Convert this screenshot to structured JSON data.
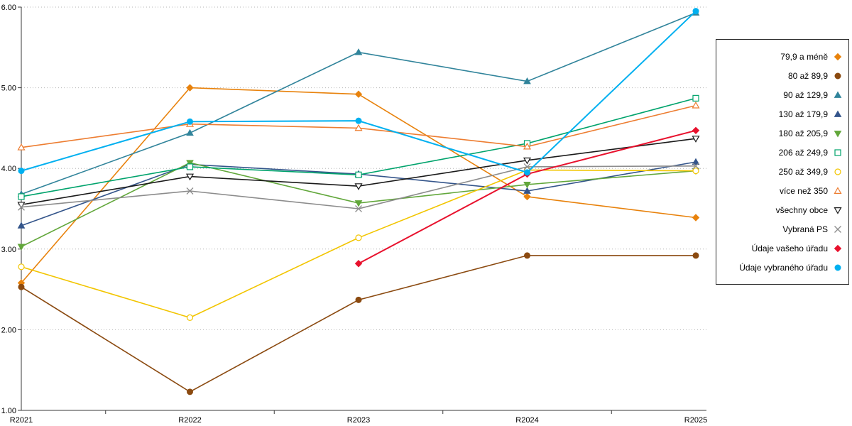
{
  "chart_data": {
    "type": "line",
    "title": "",
    "xlabel": "",
    "ylabel": "",
    "categories": [
      "R2021",
      "R2022",
      "R2023",
      "R2024",
      "R2025"
    ],
    "ylim": [
      1,
      6
    ],
    "yticks": [
      "1.00",
      "2.00",
      "3.00",
      "4.00",
      "5.00",
      "6.00"
    ],
    "grid": true,
    "grid_style": "dotted",
    "legend_position": "right",
    "colors": {
      "axis": "#3a3a3a",
      "gridline": "#b5b5b5",
      "background": "#ffffff",
      "legend_border": "#2b2b2b"
    },
    "series": [
      {
        "name": "79,9 a méně",
        "color": "#e8820c",
        "marker": "diamond",
        "fill": "filled",
        "width": 1.6,
        "values": [
          2.58,
          5.0,
          4.92,
          3.65,
          3.39
        ]
      },
      {
        "name": "80 až 89,9",
        "color": "#8b4a10",
        "marker": "circle",
        "fill": "filled",
        "width": 1.6,
        "values": [
          2.53,
          1.23,
          2.37,
          2.92,
          2.92
        ]
      },
      {
        "name": "90 až 129,9",
        "color": "#31849b",
        "marker": "triangle-up",
        "fill": "filled",
        "width": 1.6,
        "values": [
          3.68,
          4.44,
          5.44,
          5.08,
          5.93
        ]
      },
      {
        "name": "130 až 179,9",
        "color": "#34558b",
        "marker": "triangle-up",
        "fill": "filled",
        "width": 1.6,
        "values": [
          3.29,
          4.05,
          3.93,
          3.72,
          4.08
        ]
      },
      {
        "name": "180 až 205,9",
        "color": "#62a73b",
        "marker": "triangle-down",
        "fill": "filled",
        "width": 1.6,
        "values": [
          3.03,
          4.07,
          3.57,
          3.8,
          3.97
        ]
      },
      {
        "name": "206 až 249,9",
        "color": "#00a36c",
        "marker": "square",
        "fill": "hollow",
        "width": 1.6,
        "values": [
          3.65,
          4.02,
          3.92,
          4.31,
          4.87
        ]
      },
      {
        "name": "250 až 349,9",
        "color": "#f2c500",
        "marker": "circle",
        "fill": "hollow",
        "width": 1.6,
        "values": [
          2.78,
          2.15,
          3.14,
          3.98,
          3.97
        ]
      },
      {
        "name": "více než 350",
        "color": "#ed7d31",
        "marker": "triangle-up",
        "fill": "hollow",
        "width": 1.6,
        "values": [
          4.26,
          4.55,
          4.5,
          4.27,
          4.78
        ]
      },
      {
        "name": "všechny obce",
        "color": "#1a1a1a",
        "marker": "triangle-down",
        "fill": "hollow",
        "width": 1.6,
        "values": [
          3.55,
          3.9,
          3.78,
          4.1,
          4.37
        ]
      },
      {
        "name": "Vybraná PS",
        "color": "#8c8c8c",
        "marker": "x",
        "fill": "line",
        "width": 1.6,
        "values": [
          3.52,
          3.72,
          3.5,
          4.02,
          4.03
        ]
      },
      {
        "name": "Údaje vašeho úřadu",
        "color": "#e8112d",
        "marker": "diamond",
        "fill": "filled",
        "width": 2.0,
        "values": [
          null,
          null,
          2.82,
          3.93,
          4.47
        ]
      },
      {
        "name": "Údaje vybraného úřadu",
        "color": "#00b0f0",
        "marker": "circle",
        "fill": "filled",
        "width": 2.0,
        "values": [
          3.97,
          4.58,
          4.59,
          3.95,
          5.95
        ]
      }
    ]
  }
}
